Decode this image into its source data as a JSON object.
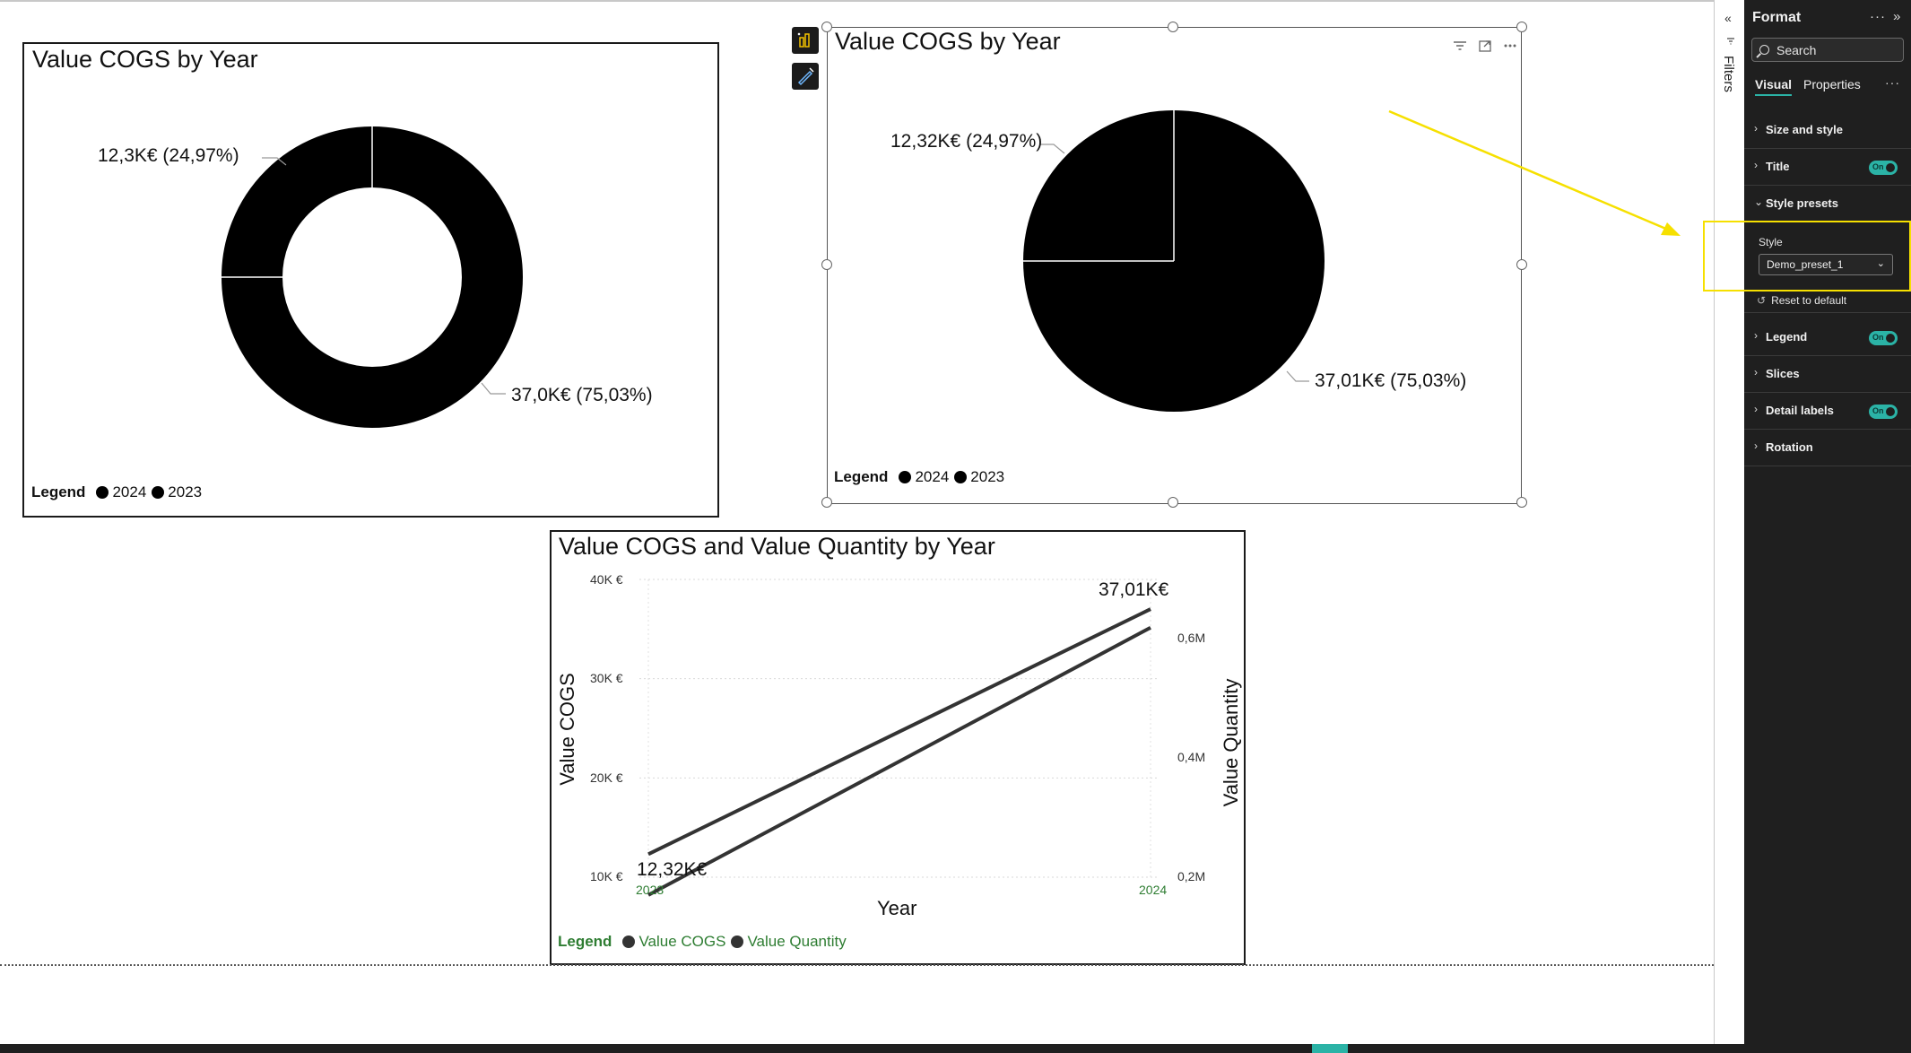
{
  "donut_visual": {
    "title": "Value COGS by Year",
    "labels": [
      "12,3K€ (24,97%)",
      "37,0K€ (75,03%)"
    ],
    "legend_title": "Legend",
    "legend_items": [
      "2024",
      "2023"
    ]
  },
  "pie_visual": {
    "title": "Value COGS by Year",
    "labels": [
      "12,32K€ (24,97%)",
      "37,01K€ (75,03%)"
    ],
    "legend_title": "Legend",
    "legend_items": [
      "2024",
      "2023"
    ],
    "header_icons": [
      "filter-icon",
      "focus-mode-icon",
      "more-options-icon"
    ]
  },
  "line_visual": {
    "title": "Value COGS and Value Quantity by Year",
    "x_axis_title": "Year",
    "y_axis_title": "Value COGS",
    "y2_axis_title": "Value Quantity",
    "y_ticks": [
      "40K €",
      "30K €",
      "20K €",
      "10K €"
    ],
    "y2_ticks": [
      "0,6M",
      "0,4M",
      "0,2M"
    ],
    "x_ticks": [
      "2023",
      "2024"
    ],
    "data_labels": [
      "12,32K€",
      "37,01K€"
    ],
    "legend_title": "Legend",
    "legend_items": [
      "Value COGS",
      "Value Quantity"
    ]
  },
  "chart_data": [
    {
      "type": "pie",
      "title": "Value COGS by Year",
      "variant": "donut",
      "categories": [
        "2024",
        "2023"
      ],
      "values": [
        37.0,
        12.3
      ],
      "units": "K€",
      "percentages": [
        75.03,
        24.97
      ],
      "legend_placement": "bottom-left"
    },
    {
      "type": "pie",
      "title": "Value COGS by Year",
      "categories": [
        "2024",
        "2023"
      ],
      "values": [
        37.01,
        12.32
      ],
      "units": "K€",
      "percentages": [
        75.03,
        24.97
      ],
      "legend_placement": "bottom-left"
    },
    {
      "type": "line",
      "title": "Value COGS and Value Quantity by Year",
      "x": [
        "2023",
        "2024"
      ],
      "series": [
        {
          "name": "Value COGS",
          "values": [
            12.32,
            37.01
          ],
          "axis": "left",
          "units": "K€"
        },
        {
          "name": "Value Quantity",
          "values": [
            0.17,
            0.62
          ],
          "axis": "right",
          "units": "M"
        }
      ],
      "xlabel": "Year",
      "ylabel": "Value COGS",
      "y2label": "Value Quantity",
      "ylim": [
        10,
        40
      ],
      "y2lim": [
        0.2,
        0.6
      ],
      "grid": true,
      "legend_placement": "bottom-left"
    }
  ],
  "filters_rail": {
    "label": "Filters",
    "collapse_glyph": "«"
  },
  "format_pane": {
    "title": "Format",
    "search_placeholder": "Search",
    "tabs": [
      "Visual",
      "Properties"
    ],
    "sections": {
      "size_and_style": "Size and style",
      "title": "Title",
      "style_presets": "Style presets",
      "legend": "Legend",
      "slices": "Slices",
      "detail_labels": "Detail labels",
      "rotation": "Rotation"
    },
    "toggle_text": "On",
    "style_label": "Style",
    "style_value": "Demo_preset_1",
    "reset_label": "Reset to default"
  },
  "colors": {
    "accent": "#2bb3a6",
    "highlight": "#f6e000",
    "pane_bg": "#1f1f1f",
    "slice": "#000000",
    "legend_green": "#2e7d32"
  }
}
